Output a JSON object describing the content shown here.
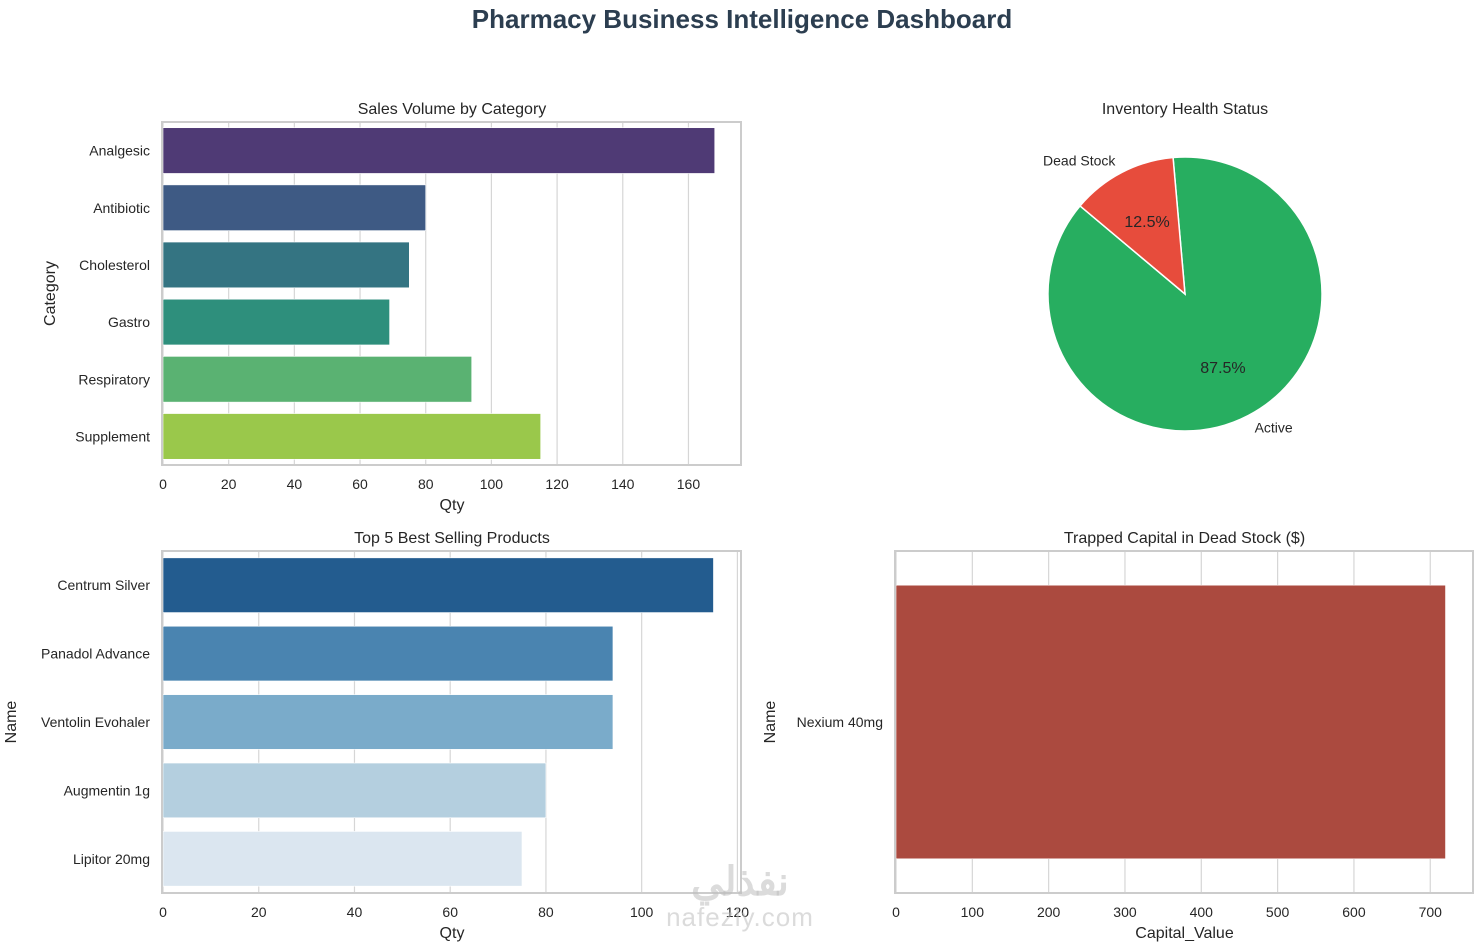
{
  "suptitle": "Pharmacy Business Intelligence Dashboard",
  "watermark": {
    "arabic": "نفذلي",
    "latin": "nafezly.com"
  },
  "chart_data": [
    {
      "id": "sales-by-category",
      "type": "bar",
      "orientation": "horizontal",
      "title": "Sales Volume by Category",
      "xlabel": "Qty",
      "ylabel": "Category",
      "categories": [
        "Analgesic",
        "Antibiotic",
        "Cholesterol",
        "Gastro",
        "Respiratory",
        "Supplement"
      ],
      "values": [
        168,
        80,
        75,
        69,
        94,
        115
      ],
      "colors": [
        "#4f3a75",
        "#3e5a84",
        "#347482",
        "#2e8f7c",
        "#5ab272",
        "#9ac84b"
      ],
      "xlim": [
        0,
        176
      ],
      "xticks": [
        0,
        20,
        40,
        60,
        80,
        100,
        120,
        140,
        160
      ],
      "grid": "vertical"
    },
    {
      "id": "inventory-health",
      "type": "pie",
      "title": "Inventory Health Status",
      "labels": [
        "Active",
        "Dead Stock"
      ],
      "values": [
        87.5,
        12.5
      ],
      "autopct": [
        "87.5%",
        "12.5%"
      ],
      "colors": [
        "#27ae60",
        "#e74c3c"
      ],
      "startangle": 140
    },
    {
      "id": "top5-products",
      "type": "bar",
      "orientation": "horizontal",
      "title": "Top 5 Best Selling Products",
      "xlabel": "Qty",
      "ylabel": "Name",
      "categories": [
        "Centrum Silver",
        "Panadol Advance",
        "Ventolin Evohaler",
        "Augmentin 1g",
        "Lipitor 20mg"
      ],
      "values": [
        115,
        94,
        94,
        80,
        75
      ],
      "colors": [
        "#235c8f",
        "#4a84b0",
        "#7aabca",
        "#b4cfdf",
        "#dbe6f0"
      ],
      "xlim": [
        0,
        120.75
      ],
      "xticks": [
        0,
        20,
        40,
        60,
        80,
        100,
        120
      ],
      "grid": "vertical"
    },
    {
      "id": "trapped-capital",
      "type": "bar",
      "orientation": "horizontal",
      "title": "Trapped Capital in Dead Stock ($)",
      "xlabel": "Capital_Value",
      "ylabel": "Name",
      "categories": [
        "Nexium 40mg"
      ],
      "values": [
        720
      ],
      "colors": [
        "#ab4a3f"
      ],
      "xlim": [
        0,
        756
      ],
      "xticks": [
        0,
        100,
        200,
        300,
        400,
        500,
        600,
        700
      ],
      "grid": "vertical"
    }
  ]
}
